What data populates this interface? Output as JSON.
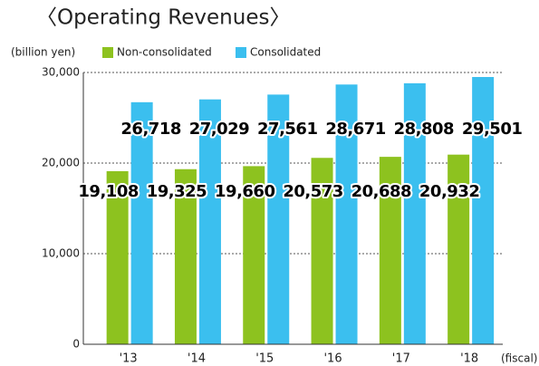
{
  "chart_data": {
    "type": "bar",
    "title": "〈Operating Revenues〉",
    "y_label": "(billion yen)",
    "x_label": "(fiscal)",
    "categories": [
      "'13",
      "'14",
      "'15",
      "'16",
      "'17",
      "'18"
    ],
    "series": [
      {
        "name": "Non-consolidated",
        "color": "#8dc21f",
        "values": [
          19108,
          19325,
          19660,
          20573,
          20688,
          20932
        ],
        "value_labels": [
          "19,108",
          "19,325",
          "19,660",
          "20,573",
          "20,688",
          "20,932"
        ]
      },
      {
        "name": "Consolidated",
        "color": "#3bbfef",
        "values": [
          26718,
          27029,
          27561,
          28671,
          28808,
          29501
        ],
        "value_labels": [
          "26,718",
          "27,029",
          "27,561",
          "28,671",
          "28,808",
          "29,501"
        ]
      }
    ],
    "ylim": [
      0,
      30000
    ],
    "yticks": [
      0,
      {
        "value": 10000,
        "label": "10,000"
      },
      {
        "value": 20000,
        "label": "20,000"
      },
      {
        "value": 30000,
        "label": "30,000"
      }
    ],
    "grid": true
  }
}
